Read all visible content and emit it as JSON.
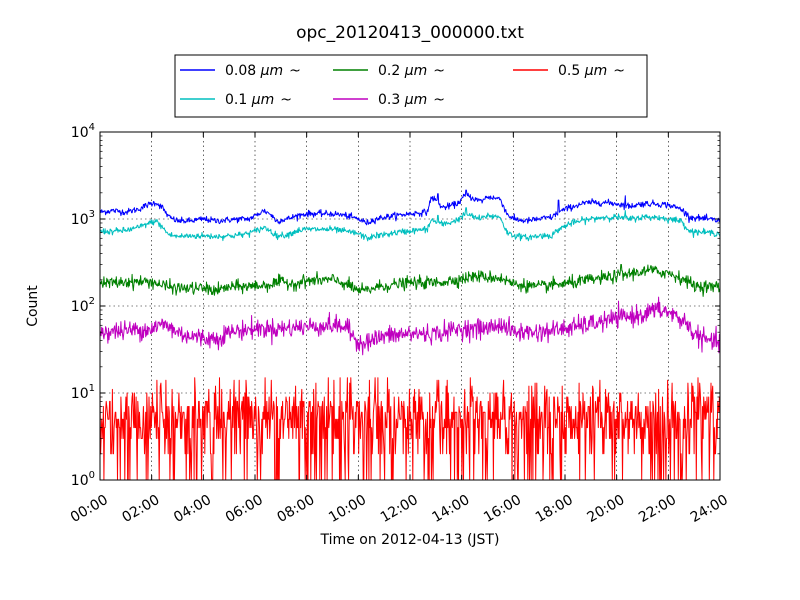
{
  "chart_data": {
    "type": "line",
    "title": "opc_20120413_000000.txt",
    "xlabel": "Time on 2012-04-13 (JST)",
    "ylabel": "Count",
    "yscale": "log",
    "ylim": [
      1,
      10000
    ],
    "xlim": [
      "00:00",
      "24:00"
    ],
    "x_ticks": [
      "00:00",
      "02:00",
      "04:00",
      "06:00",
      "08:00",
      "10:00",
      "12:00",
      "14:00",
      "16:00",
      "18:00",
      "20:00",
      "22:00",
      "24:00"
    ],
    "y_ticks": [
      {
        "value": 1,
        "base": "10",
        "exp": "0"
      },
      {
        "value": 10,
        "base": "10",
        "exp": "1"
      },
      {
        "value": 100,
        "base": "10",
        "exp": "2"
      },
      {
        "value": 1000,
        "base": "10",
        "exp": "3"
      },
      {
        "value": 10000,
        "base": "10",
        "exp": "4"
      }
    ],
    "grid": true,
    "legend_position": "top-center",
    "legend_order": [
      0,
      2,
      4,
      1,
      3
    ],
    "series": [
      {
        "name": "0.08 μm ~",
        "label_main": "0.08 ",
        "label_unit": "μm",
        "label_tilde": "~",
        "color": "#0000ff",
        "noise": 0.018,
        "points": [
          [
            "00:00",
            1200
          ],
          [
            "00:30",
            1250
          ],
          [
            "01:00",
            1200
          ],
          [
            "01:30",
            1300
          ],
          [
            "01:50",
            1450
          ],
          [
            "02:10",
            1550
          ],
          [
            "02:25",
            1350
          ],
          [
            "02:40",
            1050
          ],
          [
            "03:00",
            950
          ],
          [
            "03:30",
            950
          ],
          [
            "04:00",
            1000
          ],
          [
            "04:30",
            950
          ],
          [
            "05:00",
            980
          ],
          [
            "05:30",
            1000
          ],
          [
            "05:45",
            1000
          ],
          [
            "06:00",
            1080
          ],
          [
            "06:20",
            1250
          ],
          [
            "06:35",
            1150
          ],
          [
            "06:50",
            950
          ],
          [
            "07:15",
            1000
          ],
          [
            "07:40",
            1100
          ],
          [
            "08:00",
            1150
          ],
          [
            "08:30",
            1150
          ],
          [
            "09:00",
            1150
          ],
          [
            "09:30",
            1100
          ],
          [
            "10:00",
            1000
          ],
          [
            "10:20",
            900
          ],
          [
            "10:40",
            1000
          ],
          [
            "11:00",
            1050
          ],
          [
            "11:30",
            1100
          ],
          [
            "12:00",
            1150
          ],
          [
            "12:40",
            1200
          ],
          [
            "12:50",
            1800
          ],
          [
            "13:05",
            1550
          ],
          [
            "13:15",
            1350
          ],
          [
            "13:30",
            1400
          ],
          [
            "13:50",
            1500
          ],
          [
            "14:10",
            1900
          ],
          [
            "14:30",
            1700
          ],
          [
            "14:45",
            1600
          ],
          [
            "15:00",
            1800
          ],
          [
            "15:30",
            1700
          ],
          [
            "15:45",
            1150
          ],
          [
            "16:00",
            1000
          ],
          [
            "16:30",
            950
          ],
          [
            "17:00",
            1000
          ],
          [
            "17:30",
            1050
          ],
          [
            "17:45",
            1200
          ],
          [
            "18:10",
            1350
          ],
          [
            "18:40",
            1500
          ],
          [
            "19:00",
            1550
          ],
          [
            "19:30",
            1550
          ],
          [
            "20:00",
            1500
          ],
          [
            "20:30",
            1400
          ],
          [
            "21:00",
            1500
          ],
          [
            "21:30",
            1500
          ],
          [
            "22:00",
            1450
          ],
          [
            "22:30",
            1300
          ],
          [
            "22:50",
            1050
          ],
          [
            "23:30",
            1000
          ],
          [
            "24:00",
            950
          ]
        ],
        "spikes": [
          [
            "13:05",
            1950
          ],
          [
            "14:10",
            2150
          ],
          [
            "17:45",
            1650
          ],
          [
            "20:20",
            1850
          ]
        ]
      },
      {
        "name": "0.1 μm ~",
        "label_main": "0.1 ",
        "label_unit": "μm",
        "label_tilde": "~",
        "color": "#00bfbf",
        "noise": 0.018,
        "points": [
          [
            "00:00",
            720
          ],
          [
            "00:30",
            720
          ],
          [
            "01:00",
            740
          ],
          [
            "01:30",
            800
          ],
          [
            "01:50",
            880
          ],
          [
            "02:10",
            950
          ],
          [
            "02:25",
            800
          ],
          [
            "02:40",
            660
          ],
          [
            "03:00",
            630
          ],
          [
            "03:30",
            640
          ],
          [
            "04:00",
            640
          ],
          [
            "04:30",
            630
          ],
          [
            "05:00",
            640
          ],
          [
            "05:30",
            660
          ],
          [
            "06:00",
            720
          ],
          [
            "06:20",
            800
          ],
          [
            "06:35",
            740
          ],
          [
            "06:50",
            640
          ],
          [
            "07:15",
            660
          ],
          [
            "07:40",
            740
          ],
          [
            "08:00",
            760
          ],
          [
            "08:30",
            760
          ],
          [
            "09:00",
            760
          ],
          [
            "09:30",
            720
          ],
          [
            "10:00",
            680
          ],
          [
            "10:20",
            600
          ],
          [
            "10:40",
            640
          ],
          [
            "11:00",
            660
          ],
          [
            "11:30",
            700
          ],
          [
            "12:00",
            730
          ],
          [
            "12:40",
            760
          ],
          [
            "12:50",
            980
          ],
          [
            "13:05",
            900
          ],
          [
            "13:15",
            870
          ],
          [
            "13:30",
            900
          ],
          [
            "13:50",
            980
          ],
          [
            "14:10",
            1150
          ],
          [
            "14:30",
            1050
          ],
          [
            "14:45",
            1000
          ],
          [
            "15:00",
            1100
          ],
          [
            "15:30",
            1050
          ],
          [
            "15:45",
            700
          ],
          [
            "16:00",
            650
          ],
          [
            "16:30",
            610
          ],
          [
            "17:00",
            640
          ],
          [
            "17:30",
            650
          ],
          [
            "17:45",
            760
          ],
          [
            "18:10",
            880
          ],
          [
            "18:40",
            960
          ],
          [
            "19:00",
            1000
          ],
          [
            "19:30",
            1050
          ],
          [
            "20:00",
            1050
          ],
          [
            "20:30",
            1000
          ],
          [
            "21:00",
            1050
          ],
          [
            "21:30",
            1050
          ],
          [
            "22:00",
            1000
          ],
          [
            "22:30",
            950
          ],
          [
            "22:50",
            720
          ],
          [
            "23:30",
            700
          ],
          [
            "24:00",
            680
          ]
        ],
        "spikes": [
          [
            "13:05",
            1100
          ],
          [
            "14:10",
            1350
          ],
          [
            "20:20",
            1250
          ]
        ]
      },
      {
        "name": "0.2 μm ~",
        "label_main": "0.2 ",
        "label_unit": "μm",
        "label_tilde": "~",
        "color": "#008000",
        "noise": 0.035,
        "points": [
          [
            "00:00",
            180
          ],
          [
            "01:00",
            190
          ],
          [
            "02:00",
            190
          ],
          [
            "02:30",
            170
          ],
          [
            "03:00",
            160
          ],
          [
            "04:00",
            160
          ],
          [
            "04:30",
            150
          ],
          [
            "05:00",
            165
          ],
          [
            "06:00",
            170
          ],
          [
            "06:30",
            175
          ],
          [
            "07:00",
            190
          ],
          [
            "07:30",
            180
          ],
          [
            "08:00",
            195
          ],
          [
            "09:00",
            200
          ],
          [
            "09:30",
            180
          ],
          [
            "10:00",
            150
          ],
          [
            "10:20",
            150
          ],
          [
            "10:40",
            165
          ],
          [
            "11:00",
            170
          ],
          [
            "12:00",
            185
          ],
          [
            "13:00",
            185
          ],
          [
            "14:00",
            205
          ],
          [
            "14:30",
            220
          ],
          [
            "15:00",
            215
          ],
          [
            "15:30",
            210
          ],
          [
            "16:00",
            180
          ],
          [
            "17:00",
            165
          ],
          [
            "17:30",
            175
          ],
          [
            "18:00",
            180
          ],
          [
            "19:00",
            200
          ],
          [
            "20:00",
            220
          ],
          [
            "21:00",
            250
          ],
          [
            "21:30",
            250
          ],
          [
            "22:00",
            240
          ],
          [
            "22:40",
            200
          ],
          [
            "23:00",
            170
          ],
          [
            "24:00",
            165
          ]
        ],
        "spikes": [
          [
            "20:10",
            300
          ],
          [
            "21:20",
            290
          ]
        ]
      },
      {
        "name": "0.3 μm ~",
        "label_main": "0.3 ",
        "label_unit": "μm",
        "label_tilde": "~",
        "color": "#bf00bf",
        "noise": 0.055,
        "points": [
          [
            "00:00",
            50
          ],
          [
            "01:00",
            52
          ],
          [
            "02:00",
            55
          ],
          [
            "02:30",
            62
          ],
          [
            "03:00",
            50
          ],
          [
            "03:30",
            45
          ],
          [
            "04:00",
            43
          ],
          [
            "04:30",
            42
          ],
          [
            "05:00",
            50
          ],
          [
            "06:00",
            55
          ],
          [
            "07:00",
            55
          ],
          [
            "08:00",
            58
          ],
          [
            "09:00",
            60
          ],
          [
            "09:30",
            58
          ],
          [
            "10:00",
            38
          ],
          [
            "10:30",
            40
          ],
          [
            "11:00",
            45
          ],
          [
            "12:00",
            48
          ],
          [
            "13:00",
            48
          ],
          [
            "14:00",
            55
          ],
          [
            "15:00",
            55
          ],
          [
            "15:30",
            62
          ],
          [
            "16:00",
            50
          ],
          [
            "17:00",
            50
          ],
          [
            "18:00",
            55
          ],
          [
            "19:00",
            62
          ],
          [
            "20:00",
            72
          ],
          [
            "21:00",
            80
          ],
          [
            "21:30",
            90
          ],
          [
            "22:00",
            85
          ],
          [
            "22:40",
            65
          ],
          [
            "23:00",
            48
          ],
          [
            "23:30",
            40
          ],
          [
            "24:00",
            38
          ]
        ],
        "spikes": [
          [
            "21:40",
            110
          ]
        ]
      },
      {
        "name": "0.5 μm ~",
        "label_main": "0.5 ",
        "label_unit": "μm",
        "label_tilde": "~",
        "color": "#ff0000",
        "discrete": true,
        "points": [
          [
            "00:00",
            4.5
          ],
          [
            "06:00",
            4.5
          ],
          [
            "12:00",
            4.5
          ],
          [
            "18:00",
            4.5
          ],
          [
            "24:00",
            4.5
          ]
        ],
        "max_value": 15
      }
    ]
  }
}
